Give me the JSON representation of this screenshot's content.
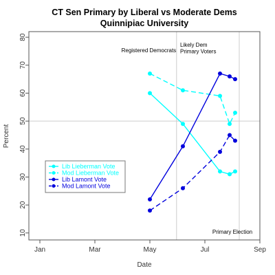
{
  "chart_data": {
    "type": "line",
    "title": "CT Sen Primary by Liberal vs Moderate Dems",
    "subtitle": "Quinnipiac University",
    "xlabel": "Date",
    "ylabel": "Percent",
    "x_ticks": [
      {
        "label": "Jan",
        "month": 1
      },
      {
        "label": "Mar",
        "month": 3
      },
      {
        "label": "May",
        "month": 5
      },
      {
        "label": "Jul",
        "month": 7
      },
      {
        "label": "Sep",
        "month": 9
      }
    ],
    "xlim": [
      0.6,
      9.0
    ],
    "ylim": [
      7.5,
      82
    ],
    "y_ticks": [
      10,
      20,
      30,
      40,
      50,
      60,
      70,
      80
    ],
    "hline": 50,
    "vlines": [
      5.97,
      8.25
    ],
    "annotations": [
      {
        "text": "Registered Democrats",
        "x": 4.96,
        "y": 74.6,
        "anchor": "middle"
      },
      {
        "text": "Likely Dem",
        "x": 6.1,
        "y": 76.6,
        "anchor": "start"
      },
      {
        "text": "Primary Voters",
        "x": 6.1,
        "y": 74.2,
        "anchor": "start"
      },
      {
        "text": "Primary Election",
        "x": 8.0,
        "y": 9.7,
        "anchor": "middle"
      }
    ],
    "series": [
      {
        "name": "Lib Lieberman Vote",
        "color": "#00ffff",
        "dash": "solid",
        "points": [
          [
            5.0,
            60
          ],
          [
            6.2,
            49
          ],
          [
            7.55,
            32
          ],
          [
            7.9,
            31
          ],
          [
            8.1,
            32
          ]
        ]
      },
      {
        "name": "Mod Lieberman Vote",
        "color": "#00ffff",
        "dash": "dashed",
        "points": [
          [
            5.0,
            67
          ],
          [
            6.2,
            61
          ],
          [
            7.55,
            59
          ],
          [
            7.9,
            49
          ],
          [
            8.1,
            53
          ]
        ]
      },
      {
        "name": "Lib Lamont Vote",
        "color": "#0000dd",
        "dash": "solid",
        "points": [
          [
            5.0,
            22
          ],
          [
            6.2,
            41
          ],
          [
            7.55,
            67
          ],
          [
            7.9,
            66
          ],
          [
            8.1,
            65
          ]
        ]
      },
      {
        "name": "Mod Lamont Vote",
        "color": "#0000dd",
        "dash": "dashed",
        "points": [
          [
            5.0,
            18
          ],
          [
            6.2,
            26
          ],
          [
            7.55,
            39
          ],
          [
            7.9,
            45
          ],
          [
            8.1,
            43
          ]
        ]
      }
    ],
    "legend_position": "bottom-left",
    "grid": false
  }
}
